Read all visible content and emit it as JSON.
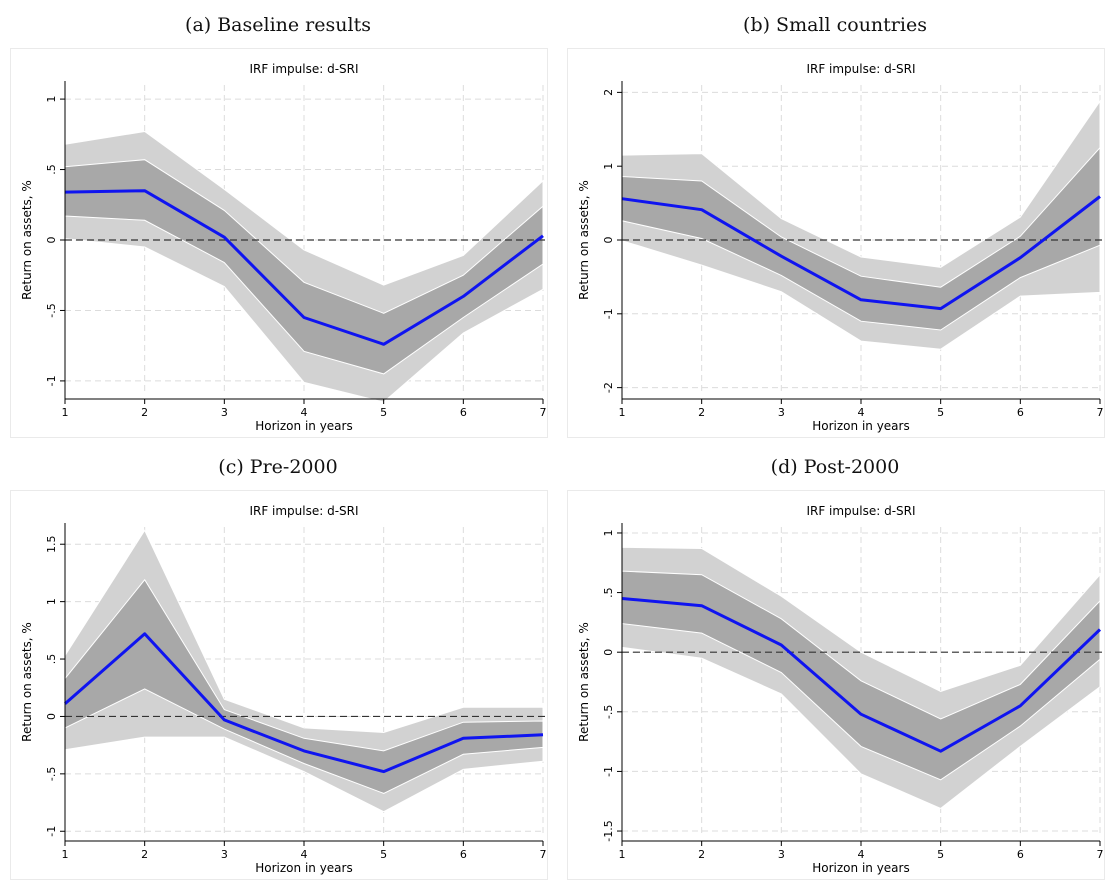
{
  "chart_data": [
    {
      "caption": "(a) Baseline results",
      "type": "line",
      "title": "IRF impulse: d-SRI",
      "xlabel": "Horizon in years",
      "ylabel": "Return on assets, %",
      "x": [
        1,
        2,
        3,
        4,
        5,
        6,
        7
      ],
      "xlim": [
        1,
        7
      ],
      "ylim": [
        -1.1,
        1.1
      ],
      "yticks": [
        -1,
        -0.5,
        0,
        0.5,
        1
      ],
      "ytick_labels": [
        "-1",
        "-.5",
        "0",
        ".5",
        "1"
      ],
      "reference_line": 0,
      "series": [
        {
          "role": "estimate",
          "values": [
            0.34,
            0.35,
            0.02,
            -0.55,
            -0.74,
            -0.4,
            0.03
          ]
        },
        {
          "role": "outer_band_upper",
          "values": [
            0.68,
            0.77,
            0.36,
            -0.07,
            -0.32,
            -0.11,
            0.42
          ]
        },
        {
          "role": "outer_band_lower",
          "values": [
            0.01,
            -0.05,
            -0.33,
            -1.01,
            -1.15,
            -0.66,
            -0.35
          ]
        },
        {
          "role": "inner_band_upper",
          "values": [
            0.52,
            0.57,
            0.21,
            -0.3,
            -0.52,
            -0.25,
            0.24
          ]
        },
        {
          "role": "inner_band_lower",
          "values": [
            0.17,
            0.14,
            -0.16,
            -0.79,
            -0.95,
            -0.55,
            -0.17
          ]
        }
      ]
    },
    {
      "caption": "(b) Small countries",
      "type": "line",
      "title": "IRF impulse: d-SRI",
      "xlabel": "Horizon in years",
      "ylabel": "Return on assets, %",
      "x": [
        1,
        2,
        3,
        4,
        5,
        6,
        7
      ],
      "xlim": [
        1,
        7
      ],
      "ylim": [
        -2.1,
        2.1
      ],
      "yticks": [
        -2,
        -1,
        0,
        1,
        2
      ],
      "ytick_labels": [
        "-2",
        "-1",
        "0",
        "1",
        "2"
      ],
      "reference_line": 0,
      "series": [
        {
          "role": "estimate",
          "values": [
            0.56,
            0.41,
            -0.22,
            -0.81,
            -0.93,
            -0.24,
            0.59
          ]
        },
        {
          "role": "outer_band_upper",
          "values": [
            1.15,
            1.17,
            0.29,
            -0.23,
            -0.37,
            0.31,
            1.88
          ]
        },
        {
          "role": "outer_band_lower",
          "values": [
            -0.01,
            -0.34,
            -0.7,
            -1.37,
            -1.48,
            -0.76,
            -0.71
          ]
        },
        {
          "role": "inner_band_upper",
          "values": [
            0.86,
            0.8,
            0.04,
            -0.49,
            -0.64,
            0.05,
            1.25
          ]
        },
        {
          "role": "inner_band_lower",
          "values": [
            0.26,
            0.02,
            -0.48,
            -1.1,
            -1.22,
            -0.51,
            -0.07
          ]
        }
      ]
    },
    {
      "caption": "(c) Pre-2000",
      "type": "line",
      "title": "IRF impulse: d-SRI",
      "xlabel": "Horizon in years",
      "ylabel": "Return on assets, %",
      "x": [
        1,
        2,
        3,
        4,
        5,
        6,
        7
      ],
      "xlim": [
        1,
        7
      ],
      "ylim": [
        -1.05,
        1.65
      ],
      "yticks": [
        -1,
        -0.5,
        0,
        0.5,
        1,
        1.5
      ],
      "ytick_labels": [
        "-1",
        "-.5",
        "0",
        ".5",
        "1",
        "1.5"
      ],
      "reference_line": 0,
      "series": [
        {
          "role": "estimate",
          "values": [
            0.11,
            0.72,
            -0.03,
            -0.3,
            -0.48,
            -0.19,
            -0.16
          ]
        },
        {
          "role": "outer_band_upper",
          "values": [
            0.53,
            1.62,
            0.15,
            -0.1,
            -0.14,
            0.08,
            0.08
          ]
        },
        {
          "role": "outer_band_lower",
          "values": [
            -0.29,
            -0.18,
            -0.18,
            -0.48,
            -0.83,
            -0.46,
            -0.39
          ]
        },
        {
          "role": "inner_band_upper",
          "values": [
            0.33,
            1.19,
            0.06,
            -0.19,
            -0.3,
            -0.05,
            -0.04
          ]
        },
        {
          "role": "inner_band_lower",
          "values": [
            -0.1,
            0.24,
            -0.11,
            -0.41,
            -0.67,
            -0.33,
            -0.27
          ]
        }
      ]
    },
    {
      "caption": "(d) Post-2000",
      "type": "line",
      "title": "IRF impulse: d-SRI",
      "xlabel": "Horizon in years",
      "ylabel": "Return on assets, %",
      "x": [
        1,
        2,
        3,
        4,
        5,
        6,
        7
      ],
      "xlim": [
        1,
        7
      ],
      "ylim": [
        -1.55,
        1.05
      ],
      "yticks": [
        -1.5,
        -1,
        -0.5,
        0,
        0.5,
        1
      ],
      "ytick_labels": [
        "-1.5",
        "-1",
        "-.5",
        "0",
        ".5",
        "1"
      ],
      "reference_line": 0,
      "series": [
        {
          "role": "estimate",
          "values": [
            0.45,
            0.39,
            0.06,
            -0.52,
            -0.83,
            -0.45,
            0.19
          ]
        },
        {
          "role": "outer_band_upper",
          "values": [
            0.88,
            0.87,
            0.47,
            0.0,
            -0.33,
            -0.11,
            0.65
          ]
        },
        {
          "role": "outer_band_lower",
          "values": [
            0.04,
            -0.05,
            -0.35,
            -1.02,
            -1.31,
            -0.79,
            -0.29
          ]
        },
        {
          "role": "inner_band_upper",
          "values": [
            0.68,
            0.65,
            0.28,
            -0.24,
            -0.56,
            -0.27,
            0.43
          ]
        },
        {
          "role": "inner_band_lower",
          "values": [
            0.24,
            0.16,
            -0.17,
            -0.79,
            -1.07,
            -0.62,
            -0.06
          ]
        }
      ]
    }
  ],
  "colors": {
    "estimate_line": "#0f14f0",
    "outer_band": "#d2d2d2",
    "inner_band": "#a8a8a8",
    "band_edge": "#ffffff",
    "grid": "#dcdcdc",
    "zero_line": "#333333"
  }
}
